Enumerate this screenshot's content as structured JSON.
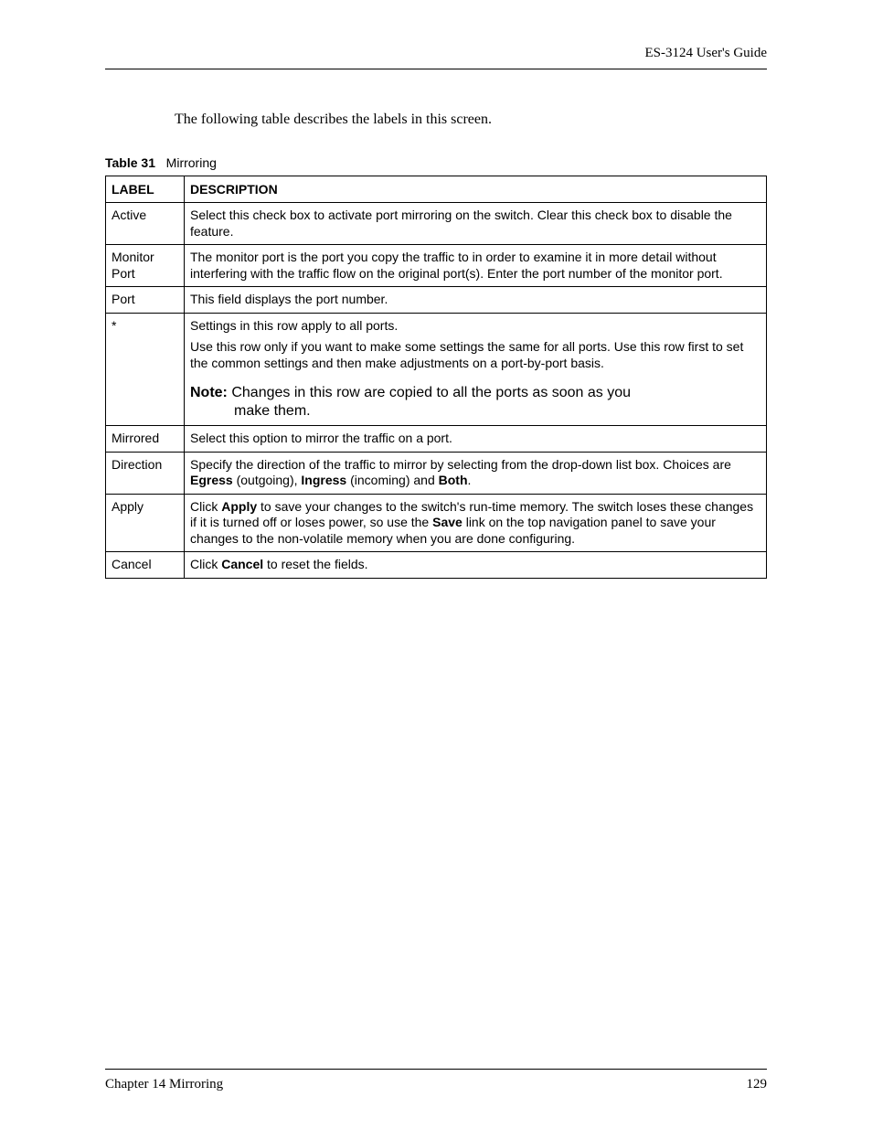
{
  "header": {
    "guide_title": "ES-3124 User's Guide"
  },
  "intro": "The following table describes the labels in this screen.",
  "table_caption": {
    "prefix": "Table 31",
    "title": "Mirroring"
  },
  "table": {
    "headers": {
      "label": "LABEL",
      "description": "DESCRIPTION"
    },
    "rows": [
      {
        "label": "Active",
        "description": "Select this check box to activate port mirroring on the switch. Clear this check box to disable the feature."
      },
      {
        "label": "Monitor Port",
        "description": "The monitor port is the port you copy the traffic to in order to examine it in more detail without interfering with the traffic flow on the original port(s). Enter the port number of the monitor port."
      },
      {
        "label": "Port",
        "description": "This field displays the port number."
      },
      {
        "label": "*",
        "description_p1": "Settings in this row apply to all ports.",
        "description_p2": "Use this row only if you want to make some settings the same for all ports. Use this row first to set the common settings and then make adjustments on a port-by-port basis.",
        "note_label": "Note:",
        "note_text_line1": "Changes in this row are copied to all the ports as soon as you",
        "note_text_line2": "make them."
      },
      {
        "label": "Mirrored",
        "description": "Select this option to mirror the traffic on a port."
      },
      {
        "label": "Direction",
        "desc_pre": "Specify the direction of the traffic to mirror by selecting from the drop-down list box. Choices are ",
        "b1": "Egress",
        "mid1": " (outgoing), ",
        "b2": "Ingress",
        "mid2": " (incoming) and ",
        "b3": "Both",
        "end": "."
      },
      {
        "label": "Apply",
        "pre": "Click ",
        "b1": "Apply",
        "mid1": " to save your changes to the switch's run-time memory. The switch loses these changes if it is turned off or loses power, so use the ",
        "b2": "Save",
        "mid2": " link on the top navigation panel to save your changes to the non-volatile memory when you are done configuring."
      },
      {
        "label": "Cancel",
        "pre": "Click ",
        "b1": "Cancel",
        "post": " to reset the fields."
      }
    ]
  },
  "footer": {
    "chapter": "Chapter 14 Mirroring",
    "page_number": "129"
  }
}
